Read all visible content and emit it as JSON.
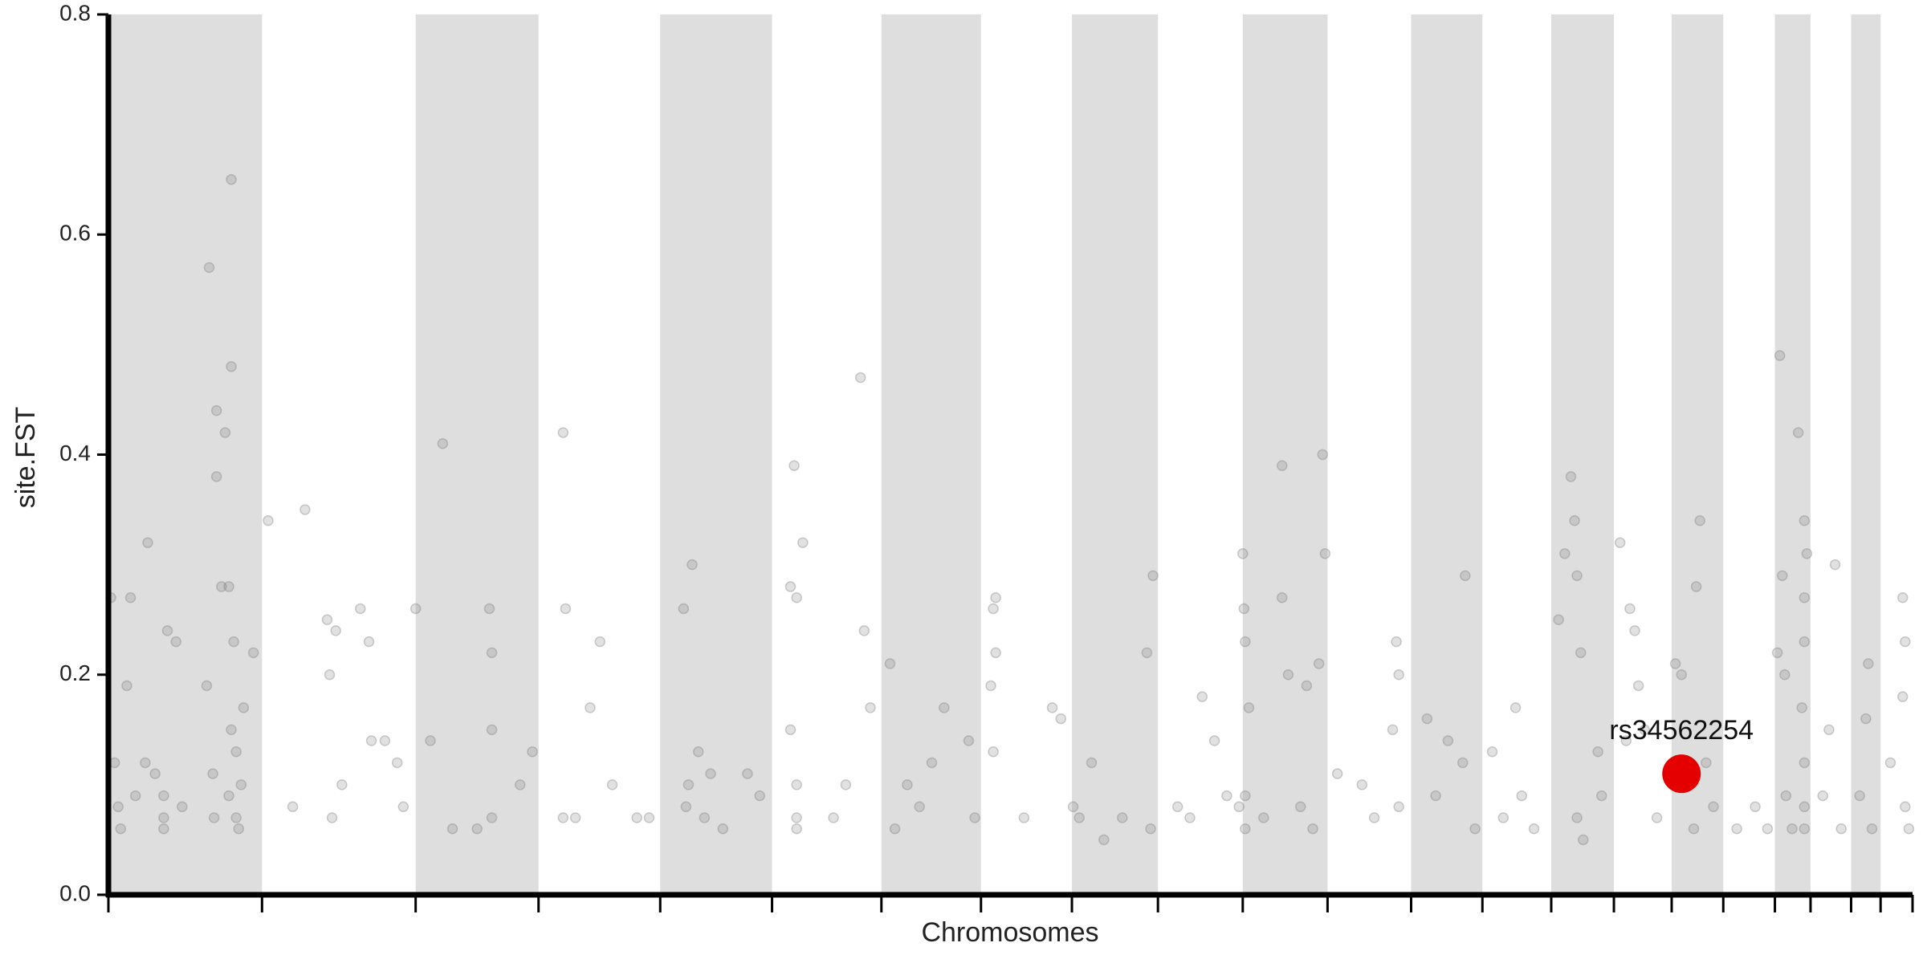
{
  "chart_data": {
    "type": "scatter",
    "x_label": "Chromosomes",
    "y_label": "site.FST",
    "xlim": [
      0,
      1468
    ],
    "xticks": [
      0,
      125,
      250,
      350,
      449,
      540,
      629,
      710,
      784,
      854,
      923,
      992,
      1060,
      1118,
      1174,
      1225,
      1272,
      1314,
      1356,
      1385,
      1418,
      1442,
      1468
    ],
    "ylim": [
      0,
      0.8
    ],
    "yticks": [
      {
        "value": 0,
        "label": "0.0"
      },
      0.2,
      0.4,
      0.6,
      0.8
    ],
    "band_color": "#dedede",
    "color": "#777777",
    "x": [
      2,
      5,
      8,
      10,
      15,
      18,
      22,
      30,
      32,
      38,
      45,
      45,
      45,
      48,
      55,
      60,
      80,
      82,
      85,
      86,
      88,
      88,
      92,
      95,
      98,
      100,
      100,
      102,
      100,
      104,
      106,
      108,
      110,
      118,
      104,
      98,
      130,
      160,
      178,
      180,
      182,
      185,
      205,
      212,
      214,
      225,
      235,
      240,
      190,
      150,
      250,
      262,
      272,
      310,
      312,
      312,
      312,
      300,
      335,
      345,
      280,
      370,
      372,
      370,
      392,
      400,
      410,
      430,
      440,
      380,
      468,
      470,
      472,
      475,
      480,
      485,
      490,
      520,
      530,
      500,
      555,
      558,
      560,
      560,
      560,
      565,
      555,
      560,
      600,
      612,
      615,
      620,
      590,
      636,
      650,
      660,
      680,
      700,
      705,
      640,
      670,
      718,
      720,
      722,
      722,
      720,
      745,
      768,
      775,
      785,
      790,
      800,
      825,
      850,
      845,
      848,
      810,
      870,
      890,
      900,
      910,
      920,
      880,
      923,
      924,
      925,
      928,
      925,
      925,
      955,
      955,
      960,
      975,
      985,
      988,
      990,
      970,
      980,
      940,
      1020,
      1048,
      1050,
      1045,
      1050,
      1000,
      1030,
      1104,
      1102,
      1073,
      1080,
      1090,
      1112,
      1126,
      1145,
      1150,
      1160,
      1135,
      1180,
      1185,
      1190,
      1193,
      1195,
      1198,
      1195,
      1200,
      1212,
      1215,
      1230,
      1238,
      1242,
      1245,
      1235,
      1250,
      1260,
      1275,
      1280,
      1295,
      1292,
      1300,
      1306,
      1290,
      1340,
      1350,
      1325,
      1358,
      1360,
      1362,
      1364,
      1375,
      1380,
      1382,
      1380,
      1380,
      1378,
      1380,
      1380,
      1380,
      1365,
      1370,
      1405,
      1400,
      1410,
      1395,
      1432,
      1430,
      1425,
      1435,
      1460,
      1462,
      1460,
      1462,
      1450,
      1465
    ],
    "values": [
      0.27,
      0.12,
      0.08,
      0.06,
      0.19,
      0.27,
      0.09,
      0.12,
      0.32,
      0.11,
      0.07,
      0.09,
      0.06,
      0.24,
      0.23,
      0.08,
      0.19,
      0.57,
      0.11,
      0.07,
      0.44,
      0.38,
      0.28,
      0.42,
      0.28,
      0.65,
      0.48,
      0.23,
      0.15,
      0.07,
      0.06,
      0.1,
      0.17,
      0.22,
      0.13,
      0.09,
      0.34,
      0.35,
      0.25,
      0.2,
      0.07,
      0.24,
      0.26,
      0.23,
      0.14,
      0.14,
      0.12,
      0.08,
      0.1,
      0.08,
      0.26,
      0.14,
      0.41,
      0.26,
      0.22,
      0.15,
      0.07,
      0.06,
      0.1,
      0.13,
      0.06,
      0.42,
      0.26,
      0.07,
      0.17,
      0.23,
      0.1,
      0.07,
      0.07,
      0.07,
      0.26,
      0.08,
      0.1,
      0.3,
      0.13,
      0.07,
      0.11,
      0.11,
      0.09,
      0.06,
      0.28,
      0.39,
      0.27,
      0.1,
      0.07,
      0.32,
      0.15,
      0.06,
      0.1,
      0.47,
      0.24,
      0.17,
      0.07,
      0.21,
      0.1,
      0.08,
      0.17,
      0.14,
      0.07,
      0.06,
      0.12,
      0.19,
      0.26,
      0.27,
      0.22,
      0.13,
      0.07,
      0.17,
      0.16,
      0.08,
      0.07,
      0.12,
      0.07,
      0.29,
      0.22,
      0.06,
      0.05,
      0.08,
      0.18,
      0.14,
      0.09,
      0.08,
      0.07,
      0.31,
      0.26,
      0.23,
      0.17,
      0.09,
      0.06,
      0.27,
      0.39,
      0.2,
      0.19,
      0.21,
      0.4,
      0.31,
      0.08,
      0.06,
      0.07,
      0.1,
      0.23,
      0.2,
      0.15,
      0.08,
      0.11,
      0.07,
      0.29,
      0.12,
      0.16,
      0.09,
      0.14,
      0.06,
      0.13,
      0.17,
      0.09,
      0.06,
      0.07,
      0.25,
      0.31,
      0.38,
      0.34,
      0.29,
      0.22,
      0.07,
      0.05,
      0.13,
      0.09,
      0.32,
      0.26,
      0.24,
      0.19,
      0.14,
      0.15,
      0.07,
      0.21,
      0.2,
      0.34,
      0.28,
      0.12,
      0.08,
      0.06,
      0.08,
      0.06,
      0.06,
      0.22,
      0.49,
      0.29,
      0.2,
      0.42,
      0.34,
      0.31,
      0.27,
      0.23,
      0.17,
      0.12,
      0.08,
      0.06,
      0.09,
      0.06,
      0.3,
      0.15,
      0.06,
      0.09,
      0.21,
      0.16,
      0.09,
      0.06,
      0.27,
      0.23,
      0.18,
      0.08,
      0.12,
      0.06
    ],
    "highlight": {
      "label": "rs34562254",
      "x": 1280,
      "value": 0.11,
      "color": "#e50000"
    }
  }
}
